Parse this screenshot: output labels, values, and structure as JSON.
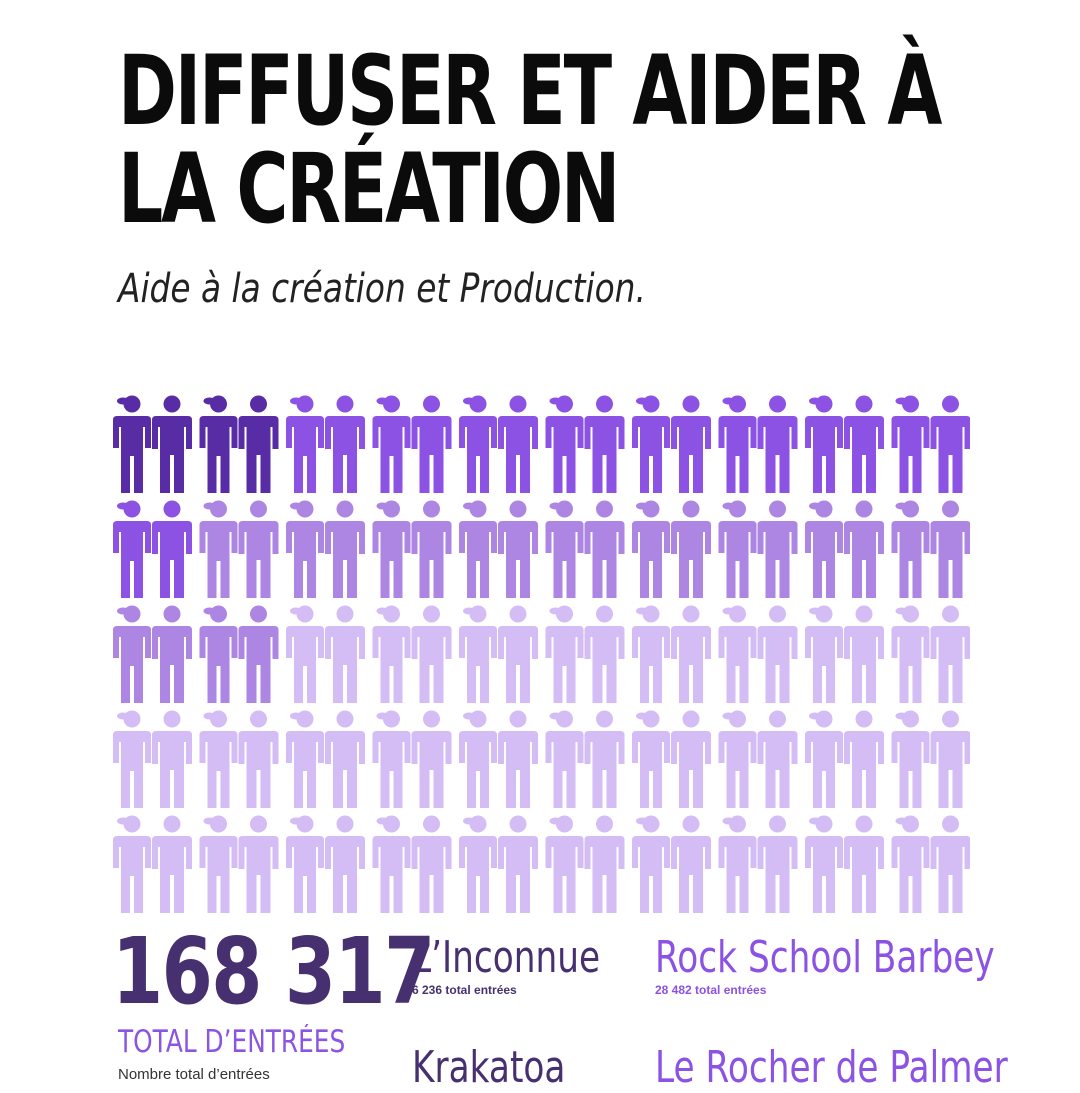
{
  "header": {
    "title_line1": "DIFFUSER ET AIDER À",
    "title_line2": "LA CRÉATION",
    "subtitle": "Aide à la création et Production."
  },
  "colors": {
    "tier1": "#582ca4",
    "tier2": "#8b52e3",
    "tier3": "#ac86e2",
    "tier4": "#d3bdf4",
    "dark_text": "#46306f",
    "accent_text": "#8b52e3"
  },
  "icons": {
    "female": "woman-icon",
    "male": "man-icon"
  },
  "pictogram_grid": {
    "rows": [
      {
        "tiers": [
          1,
          1,
          1,
          1,
          2,
          2,
          2,
          2,
          2,
          2,
          2,
          2,
          2,
          2,
          2,
          2,
          2,
          2,
          2,
          2
        ]
      },
      {
        "tiers": [
          2,
          2,
          3,
          3,
          3,
          3,
          3,
          3,
          3,
          3,
          3,
          3,
          3,
          3,
          3,
          3,
          3,
          3,
          3,
          3
        ]
      },
      {
        "tiers": [
          3,
          3,
          3,
          3,
          4,
          4,
          4,
          4,
          4,
          4,
          4,
          4,
          4,
          4,
          4,
          4,
          4,
          4,
          4,
          4
        ]
      },
      {
        "tiers": [
          4,
          4,
          4,
          4,
          4,
          4,
          4,
          4,
          4,
          4,
          4,
          4,
          4,
          4,
          4,
          4,
          4,
          4,
          4,
          4
        ]
      },
      {
        "tiers": [
          4,
          4,
          4,
          4,
          4,
          4,
          4,
          4,
          4,
          4,
          4,
          4,
          4,
          4,
          4,
          4,
          4,
          4,
          4,
          4
        ]
      }
    ]
  },
  "summary": {
    "total_value": "168 317",
    "total_label": "TOTAL D’ENTRÉES",
    "total_desc": "Nombre total d’entrées"
  },
  "venues": [
    {
      "name": "L’Inconnue",
      "count": "6 236 total entrées"
    },
    {
      "name": "Rock School Barbey",
      "count": "28 482 total entrées"
    },
    {
      "name": "Krakatoa",
      "count": ""
    },
    {
      "name": "Le Rocher de Palmer",
      "count": ""
    }
  ]
}
